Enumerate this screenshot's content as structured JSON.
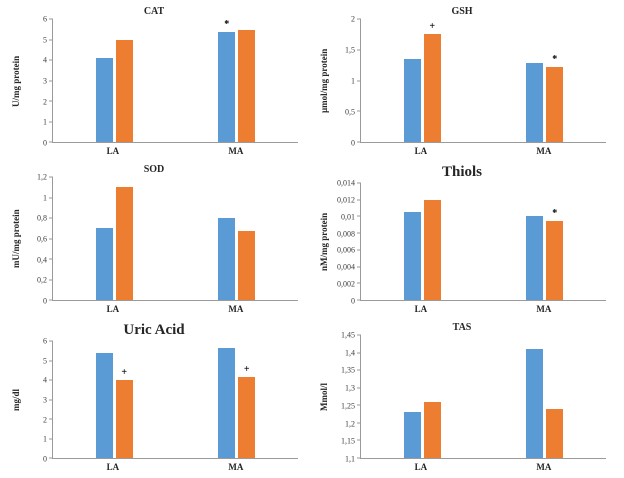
{
  "colors": {
    "series_blue": "#5B9BD5",
    "series_orange": "#ED7D31",
    "axis": "#9a9a9a"
  },
  "chart_data": [
    {
      "id": "cat",
      "type": "bar",
      "title": "CAT",
      "title_style": "small",
      "ylabel": "U/mg protein",
      "xlabel": "",
      "categories": [
        "LA",
        "MA"
      ],
      "series": [
        {
          "name": "blue",
          "color": "#5B9BD5",
          "values": [
            4.1,
            5.35
          ]
        },
        {
          "name": "orange",
          "color": "#ED7D31",
          "values": [
            5.0,
            5.45
          ]
        }
      ],
      "annotations": [
        {
          "category": "MA",
          "series": "blue",
          "text": "*"
        }
      ],
      "ylim": [
        0,
        6
      ],
      "ytick_labels_bottom_to_top": [
        "0",
        "1",
        "2",
        "3",
        "4",
        "5",
        "6"
      ],
      "grid": false,
      "legend": "none"
    },
    {
      "id": "gsh",
      "type": "bar",
      "title": "GSH",
      "title_style": "small",
      "ylabel": "µmol/mg protein",
      "xlabel": "",
      "categories": [
        "LA",
        "MA"
      ],
      "series": [
        {
          "name": "blue",
          "color": "#5B9BD5",
          "values": [
            1.35,
            1.28
          ]
        },
        {
          "name": "orange",
          "color": "#ED7D31",
          "values": [
            1.75,
            1.22
          ]
        }
      ],
      "annotations": [
        {
          "category": "LA",
          "series": "orange",
          "text": "+"
        },
        {
          "category": "MA",
          "series": "orange",
          "text": "*"
        }
      ],
      "ylim": [
        0,
        2
      ],
      "ytick_labels_bottom_to_top": [
        "0",
        "0,5",
        "1",
        "1,5",
        "2"
      ],
      "grid": false,
      "legend": "none"
    },
    {
      "id": "sod",
      "type": "bar",
      "title": "SOD",
      "title_style": "small",
      "ylabel": "mU/mg protein",
      "xlabel": "",
      "categories": [
        "LA",
        "MA"
      ],
      "series": [
        {
          "name": "blue",
          "color": "#5B9BD5",
          "values": [
            0.7,
            0.8
          ]
        },
        {
          "name": "orange",
          "color": "#ED7D31",
          "values": [
            1.1,
            0.67
          ]
        }
      ],
      "annotations": [],
      "ylim": [
        0,
        1.2
      ],
      "ytick_labels_bottom_to_top": [
        "0",
        "0,2",
        "0,4",
        "0,6",
        "0,8",
        "1",
        "1,2"
      ],
      "grid": false,
      "legend": "none"
    },
    {
      "id": "thiols",
      "type": "bar",
      "title": "Thiols",
      "title_style": "large",
      "ylabel": "nM/mg protein",
      "xlabel": "",
      "categories": [
        "LA",
        "MA"
      ],
      "series": [
        {
          "name": "blue",
          "color": "#5B9BD5",
          "values": [
            0.0105,
            0.0101
          ]
        },
        {
          "name": "orange",
          "color": "#ED7D31",
          "values": [
            0.012,
            0.0094
          ]
        }
      ],
      "annotations": [
        {
          "category": "MA",
          "series": "orange",
          "text": "*"
        }
      ],
      "ylim": [
        0,
        0.014
      ],
      "ytick_labels_bottom_to_top": [
        "0",
        "0,002",
        "0,004",
        "0,006",
        "0,008",
        "0,01",
        "0,012",
        "0,014"
      ],
      "grid": false,
      "legend": "none"
    },
    {
      "id": "uric-acid",
      "type": "bar",
      "title": "Uric Acid",
      "title_style": "large",
      "ylabel": "mg/dl",
      "xlabel": "",
      "categories": [
        "LA",
        "MA"
      ],
      "series": [
        {
          "name": "blue",
          "color": "#5B9BD5",
          "values": [
            5.4,
            5.65
          ]
        },
        {
          "name": "orange",
          "color": "#ED7D31",
          "values": [
            4.0,
            4.15
          ]
        }
      ],
      "annotations": [
        {
          "category": "LA",
          "series": "orange",
          "text": "+"
        },
        {
          "category": "MA",
          "series": "orange",
          "text": "+"
        }
      ],
      "ylim": [
        0,
        6
      ],
      "ytick_labels_bottom_to_top": [
        "0",
        "1",
        "2",
        "3",
        "4",
        "5",
        "6"
      ],
      "grid": false,
      "legend": "none"
    },
    {
      "id": "tas",
      "type": "bar",
      "title": "TAS",
      "title_style": "small",
      "ylabel": "Mmol/l",
      "xlabel": "",
      "categories": [
        "LA",
        "MA"
      ],
      "series": [
        {
          "name": "blue",
          "color": "#5B9BD5",
          "values": [
            1.23,
            1.41
          ]
        },
        {
          "name": "orange",
          "color": "#ED7D31",
          "values": [
            1.26,
            1.24
          ]
        }
      ],
      "annotations": [],
      "ylim": [
        1.1,
        1.45
      ],
      "ytick_labels_bottom_to_top": [
        "1,1",
        "1,15",
        "1,2",
        "1,25",
        "1,3",
        "1,35",
        "1,4",
        "1,45"
      ],
      "grid": false,
      "legend": "none"
    }
  ]
}
